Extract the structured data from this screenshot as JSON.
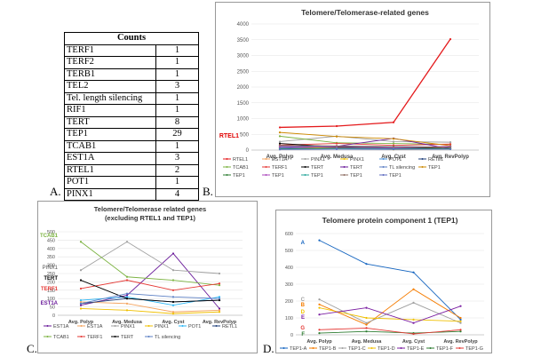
{
  "panel_labels": {
    "a": "A.",
    "b": "B.",
    "c": "C.",
    "d": "D."
  },
  "counts_table": {
    "header": "Counts",
    "rows": [
      {
        "name": "TERF1",
        "value": "1"
      },
      {
        "name": "TERF2",
        "value": "1"
      },
      {
        "name": "TERB1",
        "value": "1"
      },
      {
        "name": "TEL2",
        "value": "3"
      },
      {
        "name": "Tel. length silencing",
        "value": "1"
      },
      {
        "name": "RIF1",
        "value": "1"
      },
      {
        "name": "TERT",
        "value": "8"
      },
      {
        "name": "TEP1",
        "value": "29"
      },
      {
        "name": "TCAB1",
        "value": "1"
      },
      {
        "name": "EST1A",
        "value": "3"
      },
      {
        "name": "RTEL1",
        "value": "2"
      },
      {
        "name": "POT1",
        "value": "1"
      },
      {
        "name": "PINX1",
        "value": "4"
      }
    ]
  },
  "chart_data": [
    {
      "id": "B",
      "type": "line",
      "title": "Telomere/Telomerase-related genes",
      "categories": [
        "Avg. Polyp",
        "Avg. Medusa",
        "Avg. Cyst",
        "Avg. RevPolyp"
      ],
      "ylim": [
        0,
        4000
      ],
      "yticks": [
        "0",
        "500",
        "1000",
        "1500",
        "2000",
        "2500",
        "3000",
        "3500",
        "4000"
      ],
      "annotations": [
        {
          "text": "RTEL1",
          "color": "#e00000"
        }
      ],
      "series": [
        {
          "name": "RTEL1",
          "color": "#e41a1c",
          "values": [
            720,
            760,
            880,
            3520
          ]
        },
        {
          "name": "EST1A",
          "color": "#f4a460",
          "values": [
            90,
            80,
            50,
            60
          ]
        },
        {
          "name": "PINX1",
          "color": "#a0a0a0",
          "values": [
            270,
            440,
            270,
            250
          ]
        },
        {
          "name": "PINX1",
          "color": "#f0c000",
          "values": [
            80,
            70,
            20,
            30
          ]
        },
        {
          "name": "POT1",
          "color": "#4a90d9",
          "values": [
            100,
            110,
            30,
            120
          ]
        },
        {
          "name": "RETL1",
          "color": "#1f3f7a",
          "values": [
            120,
            100,
            80,
            90
          ]
        },
        {
          "name": "TCAB1",
          "color": "#7cb342",
          "values": [
            440,
            230,
            210,
            180
          ]
        },
        {
          "name": "TERF1",
          "color": "#e53935",
          "values": [
            160,
            210,
            150,
            190
          ]
        },
        {
          "name": "TERT",
          "color": "#000000",
          "values": [
            210,
            100,
            70,
            90
          ]
        },
        {
          "name": "TERT",
          "color": "#6a1b9a",
          "values": [
            60,
            120,
            370,
            40
          ]
        },
        {
          "name": "TL silencing",
          "color": "#5b7fc4",
          "values": [
            70,
            130,
            110,
            100
          ]
        },
        {
          "name": "TEP1",
          "color": "#cc8800",
          "values": [
            560,
            430,
            360,
            140
          ]
        },
        {
          "name": "TEP1",
          "color": "#2e7d32",
          "values": [
            40,
            60,
            50,
            50
          ]
        },
        {
          "name": "TEP1",
          "color": "#ab47bc",
          "values": [
            110,
            90,
            70,
            120
          ]
        },
        {
          "name": "TEP1",
          "color": "#26a69a",
          "values": [
            30,
            45,
            40,
            35
          ]
        },
        {
          "name": "TEP1",
          "color": "#8d6e63",
          "values": [
            150,
            130,
            110,
            90
          ]
        },
        {
          "name": "TEP1",
          "color": "#5c6bc0",
          "values": [
            20,
            30,
            25,
            30
          ]
        }
      ]
    },
    {
      "id": "C",
      "type": "line",
      "title": "Telomere/Telomerase related genes",
      "subtitle": "(excluding RTEL1 and TEP1)",
      "categories": [
        "Avg. Polyp",
        "Avg. Medusa",
        "Avg. Cyst",
        "Avg. RevPolyp"
      ],
      "ylim": [
        0,
        500
      ],
      "yticks": [
        "0",
        "50",
        "100",
        "150",
        "200",
        "250",
        "300",
        "350",
        "400",
        "450",
        "500"
      ],
      "annotations": [
        {
          "text": "TCAB1",
          "color": "#7cb342"
        },
        {
          "text": "PINX1",
          "color": "#555555"
        },
        {
          "text": "TERT",
          "color": "#000000"
        },
        {
          "text": "TERF1",
          "color": "#e53935"
        },
        {
          "text": "EST1A",
          "color": "#6a1b9a"
        }
      ],
      "series": [
        {
          "name": "EST1A",
          "color": "#6a1b9a",
          "values": [
            60,
            120,
            370,
            40
          ]
        },
        {
          "name": "EST1A",
          "color": "#f4a460",
          "values": [
            80,
            70,
            20,
            30
          ]
        },
        {
          "name": "PINX1",
          "color": "#a0a0a0",
          "values": [
            270,
            440,
            270,
            250
          ]
        },
        {
          "name": "PINX1",
          "color": "#f0c000",
          "values": [
            40,
            30,
            10,
            20
          ]
        },
        {
          "name": "POT1",
          "color": "#29b6f6",
          "values": [
            90,
            110,
            60,
            110
          ]
        },
        {
          "name": "RETL1",
          "color": "#1f3f7a",
          "values": [
            70,
            100,
            80,
            90
          ]
        },
        {
          "name": "TCAB1",
          "color": "#7cb342",
          "values": [
            440,
            230,
            210,
            180
          ]
        },
        {
          "name": "TERF1",
          "color": "#e53935",
          "values": [
            160,
            210,
            150,
            190
          ]
        },
        {
          "name": "TERT",
          "color": "#000000",
          "values": [
            210,
            100,
            80,
            90
          ]
        },
        {
          "name": "TL silencing",
          "color": "#5b7fc4",
          "values": [
            70,
            130,
            110,
            100
          ]
        }
      ]
    },
    {
      "id": "D",
      "type": "line",
      "title": "Telomere protein component 1 (TEP1)",
      "categories": [
        "Avg. Polyp",
        "Avg. Medusa",
        "Avg. Cyst",
        "Avg. RevPolyp"
      ],
      "ylim": [
        0,
        600
      ],
      "yticks": [
        "0",
        "100",
        "200",
        "300",
        "400",
        "500",
        "600"
      ],
      "annotations": [
        {
          "text": "A",
          "color": "#1565c0"
        },
        {
          "text": "C",
          "color": "#a0a0a0"
        },
        {
          "text": "B",
          "color": "#f57c00"
        },
        {
          "text": "D",
          "color": "#f0c000"
        },
        {
          "text": "E",
          "color": "#7b1fa2"
        },
        {
          "text": "G",
          "color": "#e53935"
        },
        {
          "text": "F",
          "color": "#2e7d32"
        }
      ],
      "series": [
        {
          "name": "TEP1-A",
          "color": "#1565c0",
          "values": [
            560,
            420,
            370,
            90
          ]
        },
        {
          "name": "TEP1-B",
          "color": "#f57c00",
          "values": [
            180,
            60,
            270,
            100
          ]
        },
        {
          "name": "TEP1-C",
          "color": "#a0a0a0",
          "values": [
            210,
            70,
            190,
            70
          ]
        },
        {
          "name": "TEP1-D",
          "color": "#f0c000",
          "values": [
            160,
            100,
            90,
            80
          ]
        },
        {
          "name": "TEP1-E",
          "color": "#7b1fa2",
          "values": [
            120,
            160,
            70,
            170
          ]
        },
        {
          "name": "TEP1-F",
          "color": "#2e7d32",
          "values": [
            10,
            20,
            10,
            20
          ]
        },
        {
          "name": "TEP1-G",
          "color": "#e53935",
          "values": [
            30,
            40,
            5,
            30
          ]
        }
      ]
    }
  ]
}
